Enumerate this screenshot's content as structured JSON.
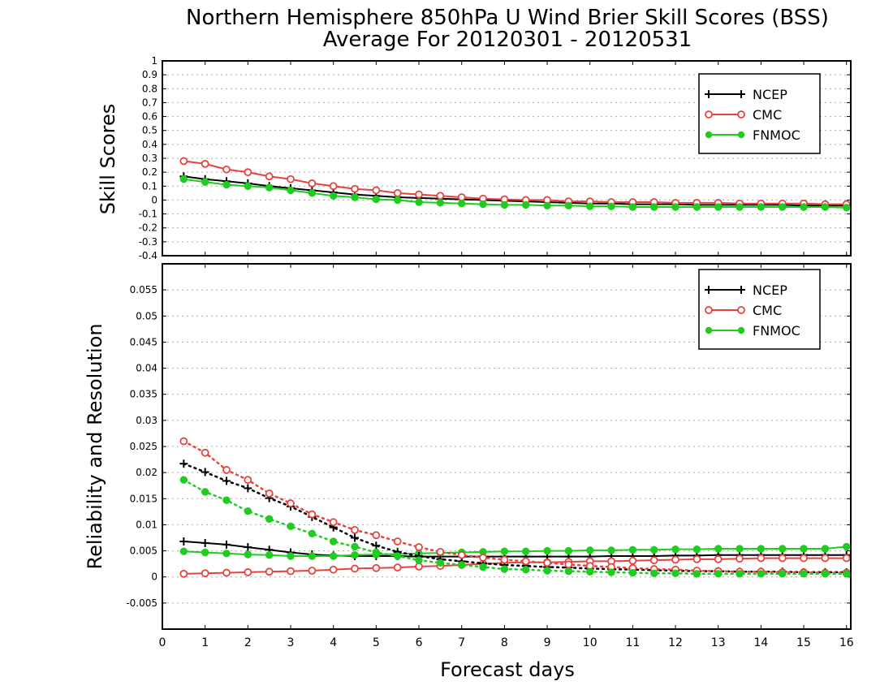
{
  "title_line1": "Northern Hemisphere 850hPa U Wind Brier Skill Scores (BSS)",
  "title_line2": "Average For 20120301 - 20120531",
  "xlabel": "Forecast days",
  "colors": {
    "NCEP": "#000000",
    "CMC": "#e8423f",
    "FNMOC": "#1fcc1f"
  },
  "chart_data": [
    {
      "type": "line",
      "ylabel": "Skill Scores",
      "xlim": [
        0,
        16.1
      ],
      "ylim": [
        -0.4,
        1
      ],
      "yticks": [
        -0.4,
        -0.3,
        -0.2,
        -0.1,
        0,
        0.1,
        0.2,
        0.3,
        0.4,
        0.5,
        0.6,
        0.7,
        0.8,
        0.9,
        1
      ],
      "ytick_labels": [
        "-0.4",
        "-0.3",
        "-0.2",
        "-0.1",
        "0",
        "0.1",
        "0.2",
        "0.3",
        "0.4",
        "0.5",
        "0.6",
        "0.7",
        "0.8",
        "0.9",
        "1"
      ],
      "grid": true,
      "legend": "top-right",
      "x": [
        0.5,
        1,
        1.5,
        2,
        2.5,
        3,
        3.5,
        4,
        4.5,
        5,
        5.5,
        6,
        6.5,
        7,
        7.5,
        8,
        8.5,
        9,
        9.5,
        10,
        10.5,
        11,
        11.5,
        12,
        12.5,
        13,
        13.5,
        14,
        14.5,
        15,
        15.5,
        16
      ],
      "series": [
        {
          "name": "NCEP",
          "style": "solid",
          "marker": "plus",
          "values": [
            0.17,
            0.15,
            0.135,
            0.12,
            0.1,
            0.085,
            0.07,
            0.055,
            0.04,
            0.03,
            0.02,
            0.015,
            0.01,
            0.005,
            0.0,
            -0.005,
            -0.01,
            -0.015,
            -0.02,
            -0.025,
            -0.025,
            -0.03,
            -0.03,
            -0.03,
            -0.035,
            -0.035,
            -0.035,
            -0.035,
            -0.035,
            -0.04,
            -0.04,
            -0.04
          ]
        },
        {
          "name": "CMC",
          "style": "solid",
          "marker": "open-circle",
          "values": [
            0.28,
            0.26,
            0.22,
            0.2,
            0.17,
            0.15,
            0.12,
            0.1,
            0.08,
            0.07,
            0.05,
            0.04,
            0.03,
            0.02,
            0.01,
            0.005,
            0.0,
            0.0,
            -0.01,
            -0.01,
            -0.015,
            -0.015,
            -0.015,
            -0.02,
            -0.02,
            -0.02,
            -0.025,
            -0.025,
            -0.025,
            -0.025,
            -0.03,
            -0.03
          ]
        },
        {
          "name": "FNMOC",
          "style": "solid",
          "marker": "filled-circle",
          "values": [
            0.15,
            0.13,
            0.11,
            0.1,
            0.09,
            0.07,
            0.05,
            0.03,
            0.02,
            0.005,
            0.0,
            -0.015,
            -0.02,
            -0.025,
            -0.03,
            -0.035,
            -0.035,
            -0.04,
            -0.04,
            -0.045,
            -0.045,
            -0.05,
            -0.05,
            -0.05,
            -0.05,
            -0.05,
            -0.05,
            -0.05,
            -0.05,
            -0.05,
            -0.05,
            -0.055
          ]
        }
      ]
    },
    {
      "type": "line",
      "ylabel": "Reliability and Resolution",
      "xlim": [
        0,
        16.1
      ],
      "ylim": [
        -0.01,
        0.06
      ],
      "yticks": [
        -0.005,
        0,
        0.005,
        0.01,
        0.015,
        0.02,
        0.025,
        0.03,
        0.035,
        0.04,
        0.045,
        0.05,
        0.055
      ],
      "ytick_labels": [
        "-0.005",
        "0",
        "0.005",
        "0.01",
        "0.015",
        "0.02",
        "0.025",
        "0.03",
        "0.035",
        "0.04",
        "0.045",
        "0.05",
        "0.055"
      ],
      "grid": true,
      "legend": "top-right",
      "x": [
        0.5,
        1,
        1.5,
        2,
        2.5,
        3,
        3.5,
        4,
        4.5,
        5,
        5.5,
        6,
        6.5,
        7,
        7.5,
        8,
        8.5,
        9,
        9.5,
        10,
        10.5,
        11,
        11.5,
        12,
        12.5,
        13,
        13.5,
        14,
        14.5,
        15,
        15.5,
        16
      ],
      "series": [
        {
          "name": "NCEP",
          "style": "solid",
          "marker": "plus",
          "metric": "reliability",
          "values": [
            0.0068,
            0.0065,
            0.0062,
            0.0057,
            0.0052,
            0.0047,
            0.0043,
            0.0041,
            0.004,
            0.004,
            0.004,
            0.0039,
            0.0039,
            0.0039,
            0.0039,
            0.0039,
            0.0039,
            0.0039,
            0.0039,
            0.0039,
            0.004,
            0.004,
            0.004,
            0.0041,
            0.0041,
            0.0042,
            0.0042,
            0.0042,
            0.0042,
            0.0042,
            0.0042,
            0.0042
          ]
        },
        {
          "name": "CMC",
          "style": "solid",
          "marker": "open-circle",
          "metric": "reliability",
          "values": [
            0.0006,
            0.0007,
            0.0008,
            0.0009,
            0.001,
            0.0011,
            0.0012,
            0.0014,
            0.0016,
            0.0017,
            0.0018,
            0.002,
            0.0021,
            0.0023,
            0.0025,
            0.0027,
            0.0028,
            0.0028,
            0.0029,
            0.003,
            0.003,
            0.0031,
            0.0032,
            0.0033,
            0.0034,
            0.0034,
            0.0035,
            0.0036,
            0.0036,
            0.0036,
            0.0036,
            0.0036
          ]
        },
        {
          "name": "FNMOC",
          "style": "solid",
          "marker": "filled-circle",
          "metric": "reliability",
          "values": [
            0.0049,
            0.0047,
            0.0045,
            0.0043,
            0.0042,
            0.004,
            0.004,
            0.004,
            0.0042,
            0.0043,
            0.0044,
            0.0045,
            0.0046,
            0.0047,
            0.0048,
            0.0049,
            0.0049,
            0.005,
            0.005,
            0.0051,
            0.0051,
            0.0052,
            0.0052,
            0.0053,
            0.0053,
            0.0054,
            0.0054,
            0.0054,
            0.0054,
            0.0054,
            0.0054,
            0.0058
          ]
        },
        {
          "name": "NCEP",
          "style": "dotted",
          "marker": "plus",
          "metric": "resolution",
          "values": [
            0.0217,
            0.0201,
            0.0184,
            0.017,
            0.0151,
            0.0135,
            0.0115,
            0.0095,
            0.0075,
            0.006,
            0.0048,
            0.004,
            0.0034,
            0.003,
            0.0026,
            0.0023,
            0.0021,
            0.0019,
            0.0018,
            0.0016,
            0.0015,
            0.0014,
            0.0013,
            0.0012,
            0.0011,
            0.0011,
            0.001,
            0.001,
            0.001,
            0.0009,
            0.0009,
            0.0009
          ]
        },
        {
          "name": "CMC",
          "style": "dotted",
          "marker": "open-circle",
          "metric": "resolution",
          "values": [
            0.026,
            0.0238,
            0.0205,
            0.0186,
            0.016,
            0.0141,
            0.012,
            0.0105,
            0.009,
            0.008,
            0.0068,
            0.0057,
            0.0048,
            0.0042,
            0.0037,
            0.0033,
            0.003,
            0.0027,
            0.0024,
            0.0021,
            0.0019,
            0.0017,
            0.0015,
            0.0014,
            0.0012,
            0.0011,
            0.001,
            0.001,
            0.0009,
            0.0009,
            0.0008,
            0.0008
          ]
        },
        {
          "name": "FNMOC",
          "style": "dotted",
          "marker": "filled-circle",
          "metric": "resolution",
          "values": [
            0.0186,
            0.0163,
            0.0147,
            0.0126,
            0.0111,
            0.0097,
            0.0083,
            0.0068,
            0.0058,
            0.0047,
            0.004,
            0.0032,
            0.0027,
            0.0023,
            0.0019,
            0.0015,
            0.0014,
            0.0012,
            0.0011,
            0.001,
            0.0009,
            0.0008,
            0.0007,
            0.0007,
            0.0006,
            0.0006,
            0.0006,
            0.0006,
            0.0006,
            0.0006,
            0.0006,
            0.0006
          ]
        }
      ]
    }
  ],
  "xticks": [
    0,
    1,
    2,
    3,
    4,
    5,
    6,
    7,
    8,
    9,
    10,
    11,
    12,
    13,
    14,
    15,
    16
  ],
  "xtick_labels": [
    "0",
    "1",
    "2",
    "3",
    "4",
    "5",
    "6",
    "7",
    "8",
    "9",
    "10",
    "11",
    "12",
    "13",
    "14",
    "15",
    "16"
  ],
  "legend_entries": [
    "NCEP",
    "CMC",
    "FNMOC"
  ]
}
